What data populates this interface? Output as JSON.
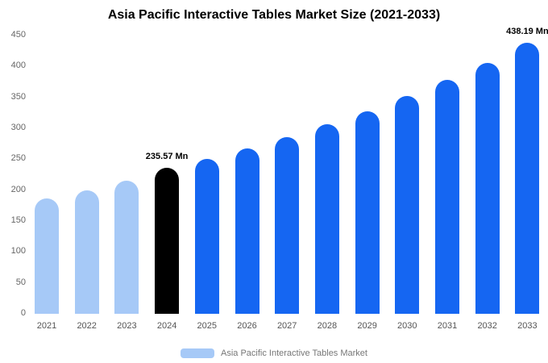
{
  "chart_data": {
    "type": "bar",
    "title": "Asia Pacific Interactive Tables Market Size (2021-2033)",
    "categories": [
      "2021",
      "2022",
      "2023",
      "2024",
      "2025",
      "2026",
      "2027",
      "2028",
      "2029",
      "2030",
      "2031",
      "2032",
      "2033"
    ],
    "values": [
      186,
      200,
      215,
      235.57,
      250,
      267,
      286,
      306,
      328,
      352,
      378,
      406,
      438.19
    ],
    "unit": "Mn",
    "ylim": [
      0,
      450
    ],
    "yticks": [
      0,
      50,
      100,
      150,
      200,
      250,
      300,
      350,
      400,
      450
    ],
    "grid": false,
    "legend_position": "bottom",
    "legend_label": "Asia Pacific Interactive Tables Market",
    "annotations": [
      {
        "index": 3,
        "text": "235.57 Mn"
      },
      {
        "index": 12,
        "text": "438.19 Mn"
      }
    ],
    "colors": {
      "historical": "#A6C9F7",
      "base_year": "#000000",
      "forecast": "#1566F2",
      "legend_swatch": "#A6C9F7"
    },
    "bar_color_keys": [
      "historical",
      "historical",
      "historical",
      "base_year",
      "forecast",
      "forecast",
      "forecast",
      "forecast",
      "forecast",
      "forecast",
      "forecast",
      "forecast",
      "forecast"
    ]
  }
}
